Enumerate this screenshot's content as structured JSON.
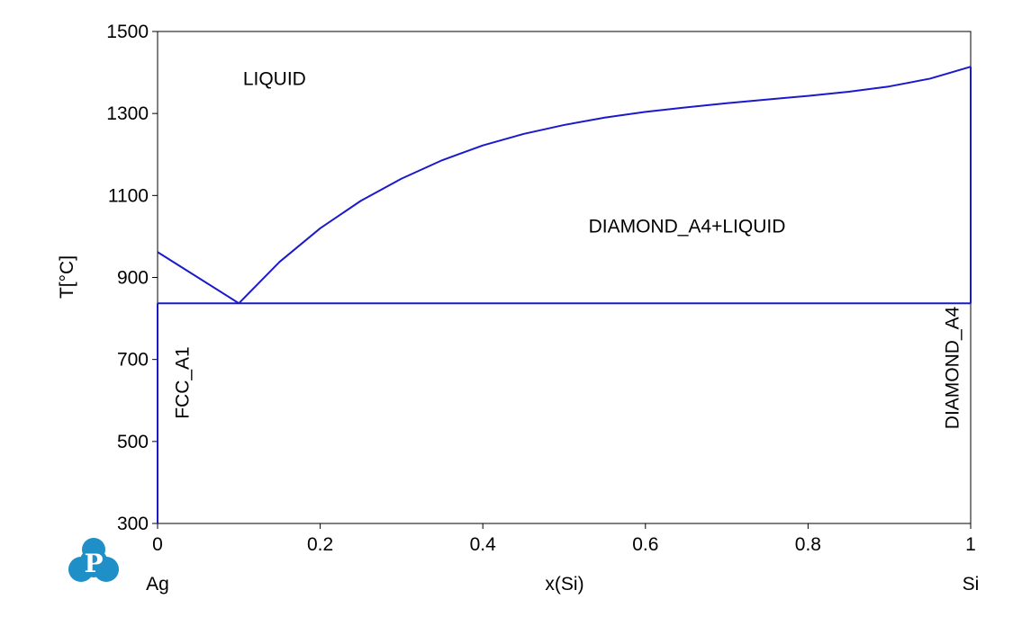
{
  "chart_data": {
    "type": "line",
    "title": "",
    "xlabel": "x(Si)",
    "ylabel": "T[°C]",
    "xlim": [
      0,
      1
    ],
    "ylim": [
      300,
      1500
    ],
    "grid": false,
    "x_ticks": [
      "0",
      "0.2",
      "0.4",
      "0.6",
      "0.8",
      "1"
    ],
    "x_tick_values": [
      0,
      0.2,
      0.4,
      0.6,
      0.8,
      1
    ],
    "y_ticks": [
      "300",
      "500",
      "700",
      "900",
      "1100",
      "1300",
      "1500"
    ],
    "y_tick_values": [
      300,
      500,
      700,
      900,
      1100,
      1300,
      1500
    ],
    "endpoint_labels": {
      "left": "Ag",
      "right": "Si"
    },
    "line_color": "#1a1acc",
    "series": [
      {
        "x": [
          0,
          0.1
        ],
        "y": [
          962,
          837
        ]
      },
      {
        "x": [
          0.1,
          0.15,
          0.2,
          0.25,
          0.3,
          0.35,
          0.4,
          0.45,
          0.5,
          0.55,
          0.6,
          0.65,
          0.7,
          0.75,
          0.8,
          0.85,
          0.9,
          0.95,
          1.0
        ],
        "y": [
          837,
          938,
          1020,
          1087,
          1141,
          1186,
          1222,
          1250,
          1272,
          1290,
          1304,
          1315,
          1325,
          1334,
          1343,
          1353,
          1366,
          1385,
          1414
        ]
      },
      {
        "x": [
          0,
          1
        ],
        "y": [
          837,
          837
        ]
      },
      {
        "x": [
          0,
          0
        ],
        "y": [
          300,
          837
        ]
      },
      {
        "x": [
          1,
          1
        ],
        "y": [
          837,
          1414
        ]
      }
    ],
    "annotations": [
      {
        "text": "LIQUID",
        "x": 0.105,
        "y": 1370,
        "rotation": 0
      },
      {
        "text": "DIAMOND_A4+LIQUID",
        "x": 0.53,
        "y": 1010,
        "rotation": 0
      },
      {
        "text": "FCC_A1",
        "x": 0.038,
        "y": 555,
        "rotation": -90
      },
      {
        "text": "DIAMOND_A4",
        "x": 0.985,
        "y": 530,
        "rotation": -90
      }
    ]
  },
  "logo": {
    "name": "thermo-calc-logo",
    "letter": "P",
    "color": "#1e8fc7"
  }
}
